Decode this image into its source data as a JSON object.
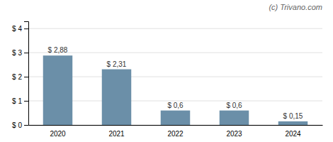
{
  "chart_data": {
    "type": "bar",
    "categories": [
      "2020",
      "2021",
      "2022",
      "2023",
      "2024"
    ],
    "values": [
      2.88,
      2.31,
      0.6,
      0.6,
      0.15
    ],
    "value_labels": [
      "$ 2,88",
      "$ 2,31",
      "$ 0,6",
      "$ 0,6",
      "$ 0,15"
    ],
    "data_labels": true,
    "color": "#6b8fa8",
    "ylim": [
      0,
      4.3
    ],
    "yticks": [
      {
        "value": 0,
        "label": "$ 0"
      },
      {
        "value": 1,
        "label": "$ 1"
      },
      {
        "value": 2,
        "label": "$ 2"
      },
      {
        "value": 3,
        "label": "$ 3"
      },
      {
        "value": 4,
        "label": "$ 4"
      }
    ],
    "grid": true,
    "annotations": [
      "(c) Trivano.com"
    ]
  }
}
